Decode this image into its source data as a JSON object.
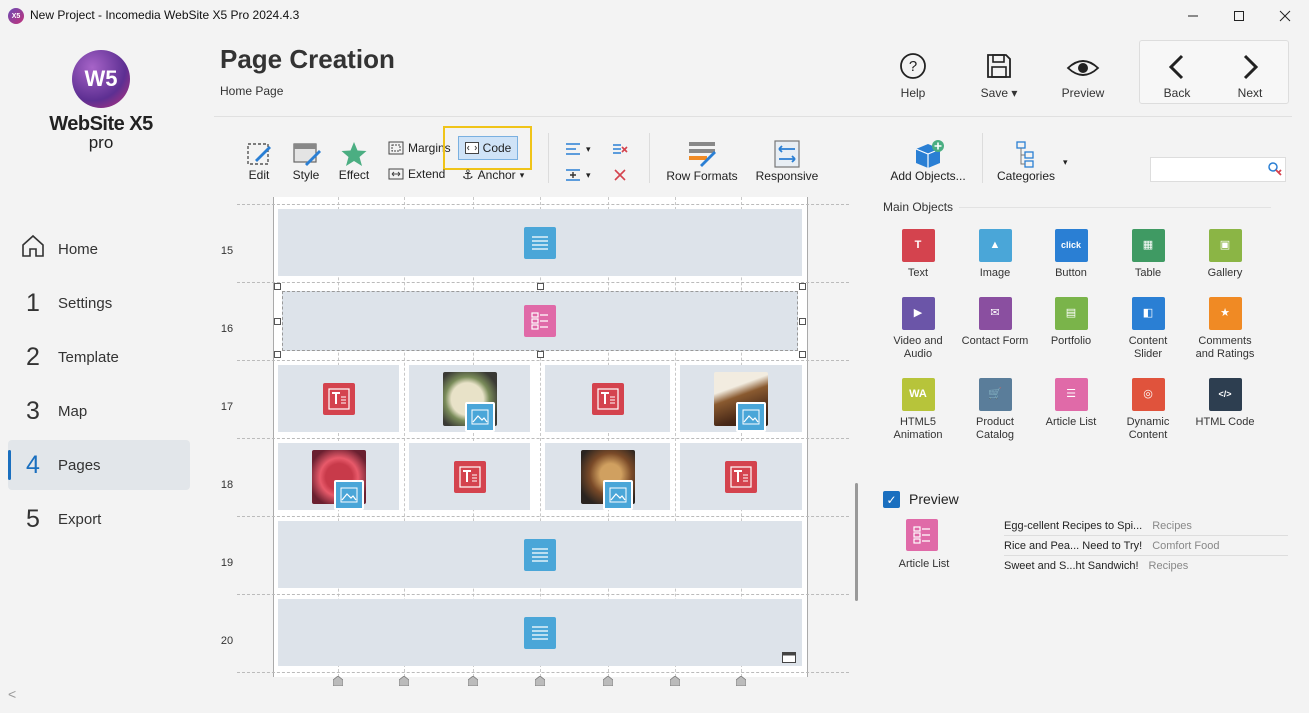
{
  "window": {
    "logo_glyph": "X5",
    "title": "New Project - Incomedia WebSite X5 Pro 2024.4.3",
    "controls": [
      "minimize-icon",
      "maximize-icon",
      "close-icon"
    ]
  },
  "sidebar": {
    "brand": "WebSite X5",
    "brand_sub": "pro",
    "logo_glyph": "W5",
    "items": [
      {
        "num": "",
        "label": "Home",
        "icon": "home-icon"
      },
      {
        "num": "1",
        "label": "Settings"
      },
      {
        "num": "2",
        "label": "Template"
      },
      {
        "num": "3",
        "label": "Map"
      },
      {
        "num": "4",
        "label": "Pages",
        "active": true
      },
      {
        "num": "5",
        "label": "Export"
      }
    ],
    "collapse_glyph": "<"
  },
  "header": {
    "title": "Page Creation",
    "subtitle": "Home Page",
    "help": "Help",
    "save": "Save",
    "preview": "Preview",
    "back": "Back",
    "next": "Next"
  },
  "toolbar": {
    "edit": "Edit",
    "style": "Style",
    "effect": "Effect",
    "margins": "Margins",
    "code": "Code",
    "extend": "Extend",
    "anchor": "Anchor",
    "row_formats": "Row Formats",
    "responsive": "Responsive",
    "add_objects": "Add Objects...",
    "categories": "Categories",
    "search_placeholder": ""
  },
  "canvas": {
    "rows": [
      "15",
      "16",
      "17",
      "18",
      "19",
      "20"
    ]
  },
  "objects": {
    "section_label": "Main Objects",
    "items": [
      {
        "label": "Text",
        "color": "#d4434e",
        "glyph": "T"
      },
      {
        "label": "Image",
        "color": "#4aa6d8",
        "glyph": "▲"
      },
      {
        "label": "Button",
        "color": "#2a7fd4",
        "glyph": "click"
      },
      {
        "label": "Table",
        "color": "#3f9a63",
        "glyph": "▦"
      },
      {
        "label": "Gallery",
        "color": "#8bb545",
        "glyph": "▣"
      },
      {
        "label": "Video and\nAudio",
        "color": "#6b55a8",
        "glyph": "▶"
      },
      {
        "label": "Contact Form",
        "color": "#8a4fa0",
        "glyph": "✉"
      },
      {
        "label": "Portfolio",
        "color": "#7ab44a",
        "glyph": "▤"
      },
      {
        "label": "Content\nSlider",
        "color": "#2a7fd4",
        "glyph": "◧"
      },
      {
        "label": "Comments\nand Ratings",
        "color": "#f08a24",
        "glyph": "★"
      },
      {
        "label": "HTML5\nAnimation",
        "color": "#b7c43a",
        "glyph": "WA"
      },
      {
        "label": "Product\nCatalog",
        "color": "#5a7d9a",
        "glyph": "🛒"
      },
      {
        "label": "Article List",
        "color": "#e06aa8",
        "glyph": "☰"
      },
      {
        "label": "Dynamic\nContent",
        "color": "#e0533c",
        "glyph": "◎"
      },
      {
        "label": "HTML Code",
        "color": "#2d3e50",
        "glyph": "</>"
      }
    ]
  },
  "preview": {
    "label": "Preview",
    "checked": true,
    "check_glyph": "✓",
    "object_label": "Article List",
    "rows": [
      {
        "title": "Egg-cellent Recipes to Spi...",
        "category": "Recipes"
      },
      {
        "title": "Rice and Pea... Need to Try!",
        "category": "Comfort Food"
      },
      {
        "title": "Sweet and S...ht Sandwich!",
        "category": "Recipes"
      }
    ]
  }
}
